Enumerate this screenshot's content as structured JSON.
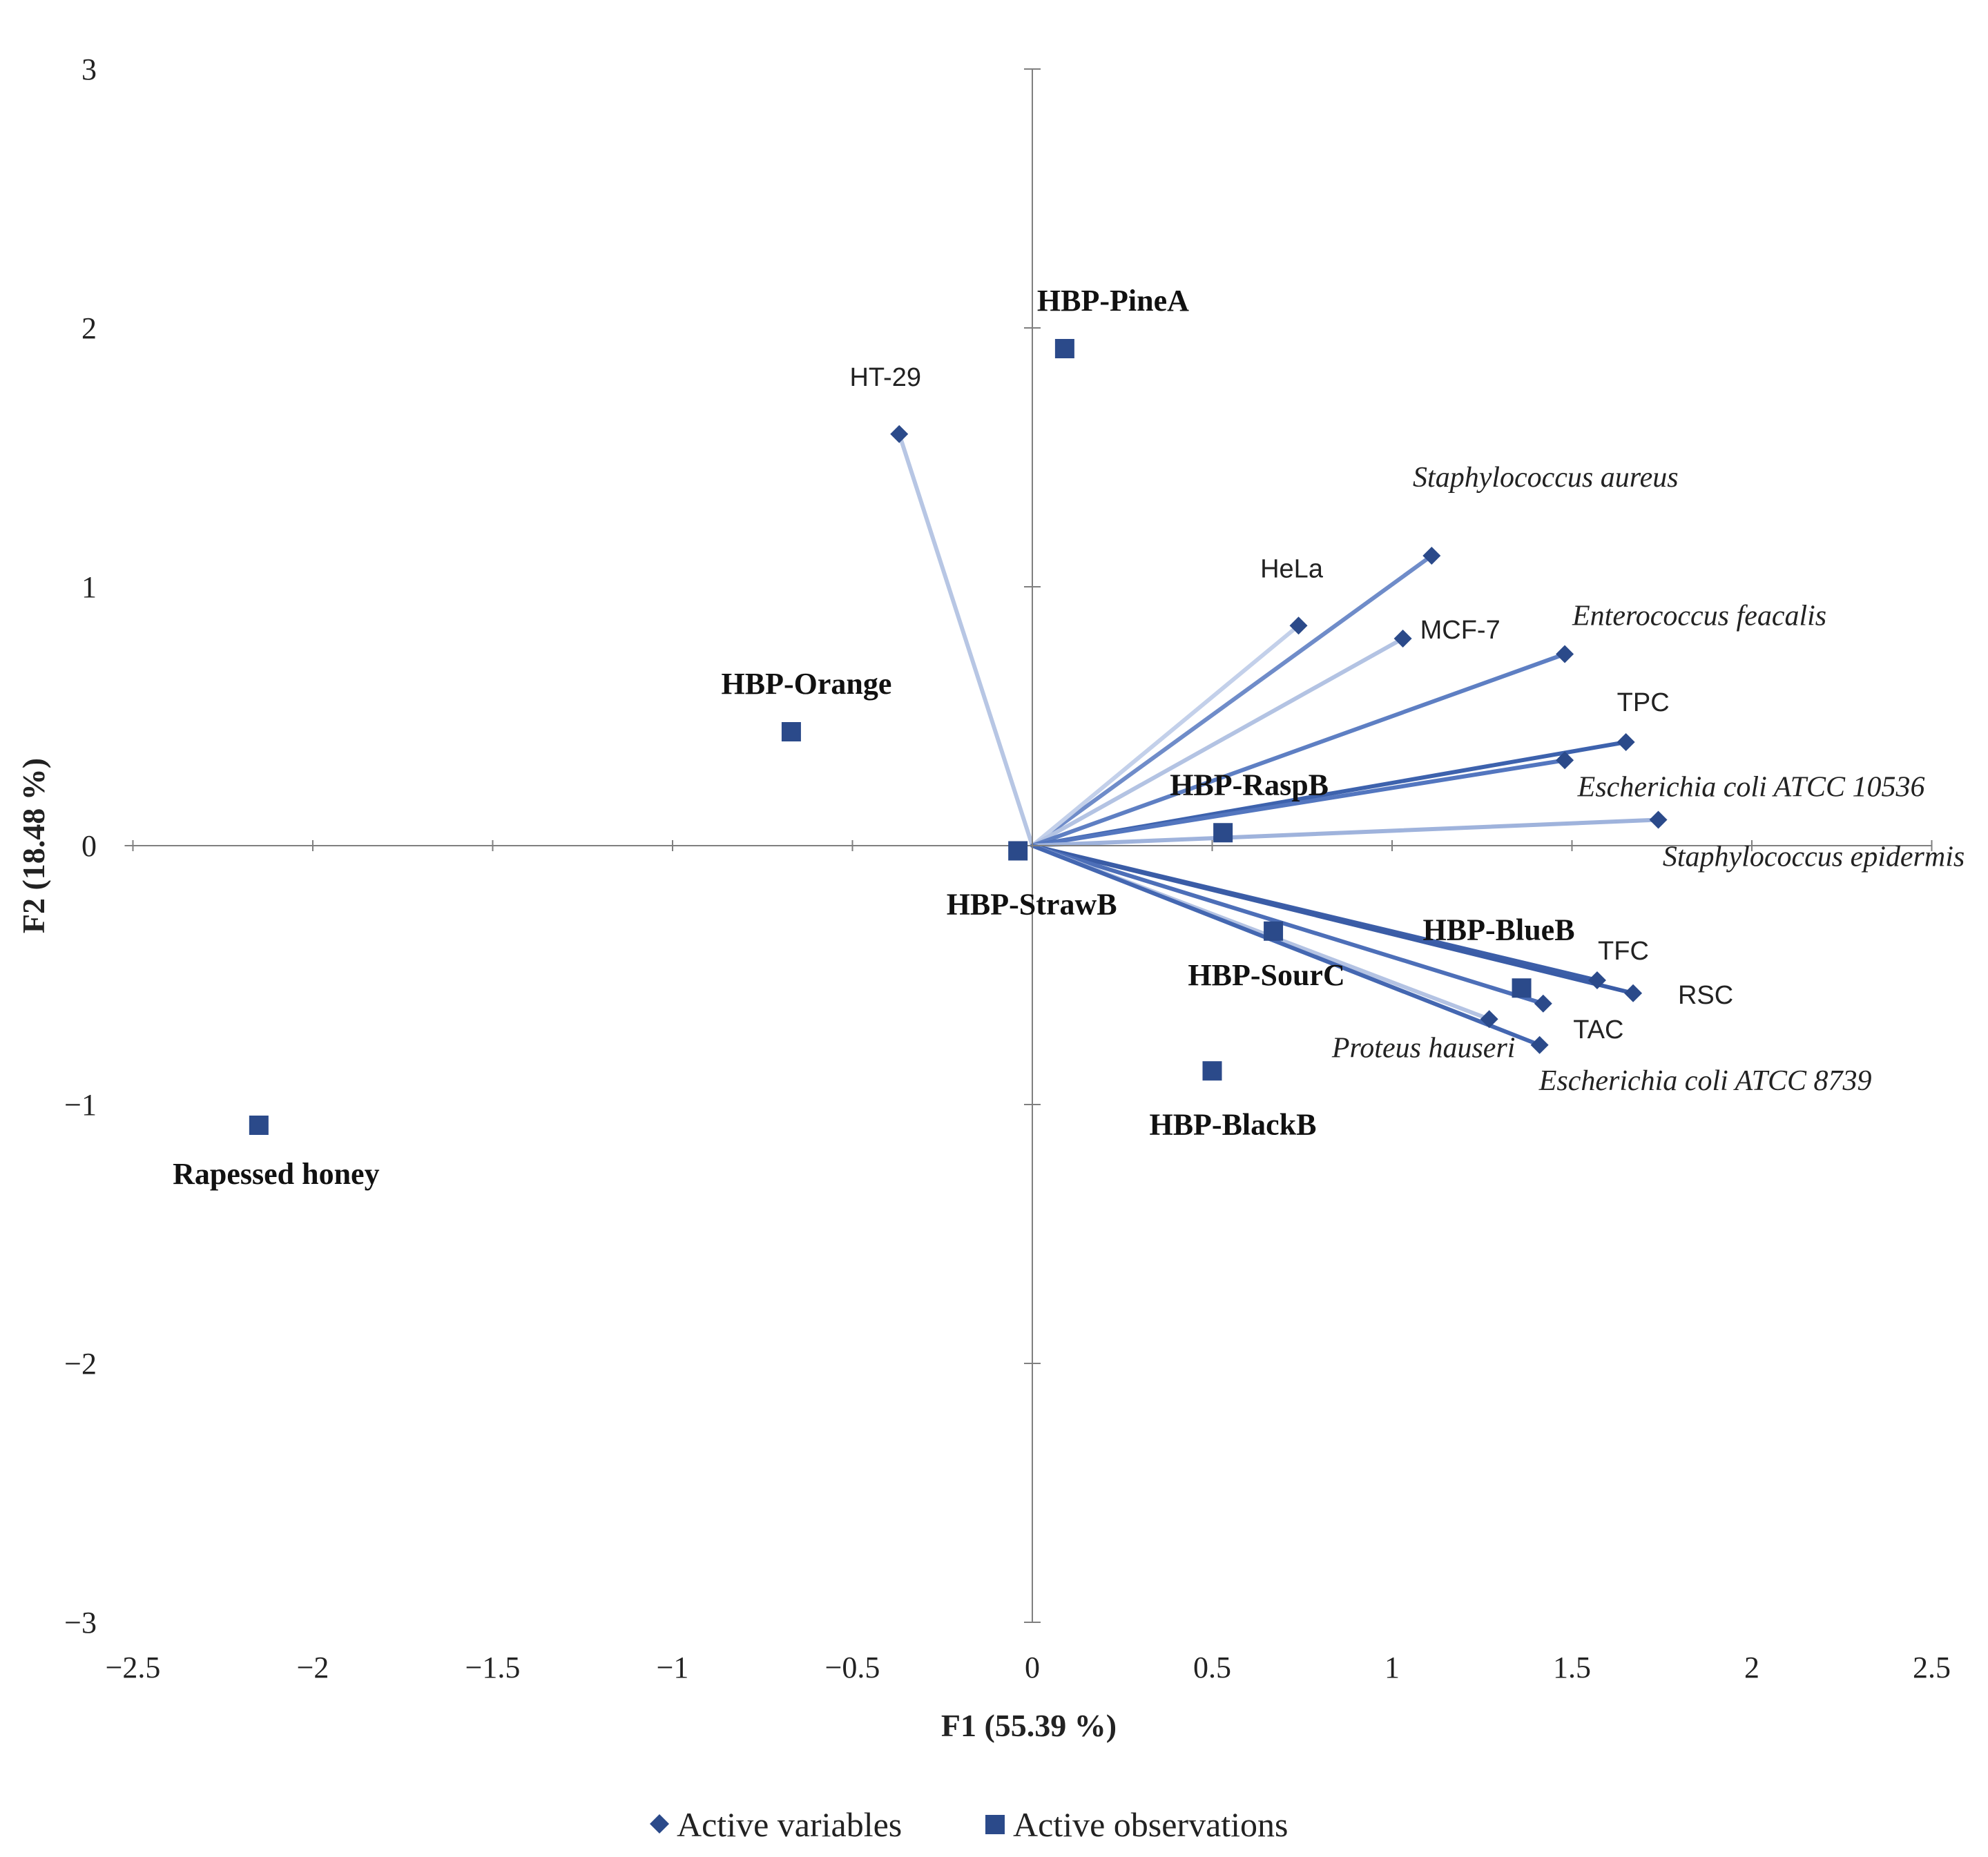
{
  "chart_data": {
    "type": "scatter",
    "subtype": "PCA biplot",
    "xlabel": "F1 (55.39 %)",
    "ylabel": "F2 (18.48 %)",
    "xlim": [
      -2.5,
      2.5
    ],
    "ylim": [
      -3,
      3
    ],
    "x_ticks": [
      {
        "value": -2.5,
        "label": "−2.5"
      },
      {
        "value": -2,
        "label": "−2"
      },
      {
        "value": -1.5,
        "label": "−1.5"
      },
      {
        "value": -1,
        "label": "−1"
      },
      {
        "value": -0.5,
        "label": "−0.5"
      },
      {
        "value": 0,
        "label": "0"
      },
      {
        "value": 0.5,
        "label": "0.5"
      },
      {
        "value": 1,
        "label": "1"
      },
      {
        "value": 1.5,
        "label": "1.5"
      },
      {
        "value": 2,
        "label": "2"
      },
      {
        "value": 2.5,
        "label": "2.5"
      }
    ],
    "y_ticks": [
      {
        "value": 3,
        "label": "3"
      },
      {
        "value": 2,
        "label": "2"
      },
      {
        "value": 1,
        "label": "1"
      },
      {
        "value": 0,
        "label": "0"
      },
      {
        "value": -1,
        "label": "−1"
      },
      {
        "value": -2,
        "label": "−2"
      },
      {
        "value": -3,
        "label": "−3"
      }
    ],
    "legend": {
      "position": "bottom-center",
      "variables_label": "Active variables",
      "observations_label": "Active observations"
    },
    "colors": {
      "marker": "#2b4a8a",
      "axis": "#7f7f7f"
    },
    "variables": [
      {
        "name": "HT-29",
        "italic": false,
        "x": -0.37,
        "y": 1.59,
        "color": "#b7c6e4"
      },
      {
        "name": "Staphylococcus aureus",
        "italic": true,
        "x": 1.11,
        "y": 1.12,
        "color": "#6f8cc9"
      },
      {
        "name": "HeLa",
        "italic": false,
        "x": 0.74,
        "y": 0.85,
        "color": "#c3d0ea"
      },
      {
        "name": "MCF-7",
        "italic": false,
        "x": 1.03,
        "y": 0.8,
        "color": "#b3c3e3"
      },
      {
        "name": "Enterococcus feacalis",
        "italic": true,
        "x": 1.48,
        "y": 0.74,
        "color": "#5e7fc3"
      },
      {
        "name": "TPC",
        "italic": false,
        "x": 1.65,
        "y": 0.4,
        "color": "#3d62ad"
      },
      {
        "name": "Escherichia coli ATCC 10536",
        "italic": true,
        "x": 1.48,
        "y": 0.33,
        "color": "#5376bf"
      },
      {
        "name": "Staphylococcus epidermis",
        "italic": true,
        "x": 1.74,
        "y": 0.1,
        "color": "#9fb3dc"
      },
      {
        "name": "TFC",
        "italic": false,
        "x": 1.57,
        "y": -0.52,
        "color": "#3c5ea8"
      },
      {
        "name": "RSC",
        "italic": false,
        "x": 1.67,
        "y": -0.57,
        "color": "#3a5ca6"
      },
      {
        "name": "TAC",
        "italic": false,
        "x": 1.42,
        "y": -0.61,
        "color": "#4d6fb8"
      },
      {
        "name": "Proteus hauseri",
        "italic": true,
        "x": 1.27,
        "y": -0.67,
        "color": "#b4c3e3"
      },
      {
        "name": "Escherichia coli ATCC 8739",
        "italic": true,
        "x": 1.41,
        "y": -0.77,
        "color": "#4467b1"
      }
    ],
    "observations": [
      {
        "name": "HBP-PineA",
        "x": 0.09,
        "y": 1.92
      },
      {
        "name": "HBP-Orange",
        "x": -0.67,
        "y": 0.44
      },
      {
        "name": "HBP-RaspB",
        "x": 0.53,
        "y": 0.05
      },
      {
        "name": "HBP-StrawB",
        "x": -0.04,
        "y": -0.02
      },
      {
        "name": "HBP-BlueB",
        "x": 1.36,
        "y": -0.55
      },
      {
        "name": "HBP-SourC",
        "x": 0.67,
        "y": -0.33
      },
      {
        "name": "HBP-BlackB",
        "x": 0.5,
        "y": -0.87
      },
      {
        "name": "Rapessed honey",
        "x": -2.15,
        "y": -1.08
      }
    ]
  }
}
